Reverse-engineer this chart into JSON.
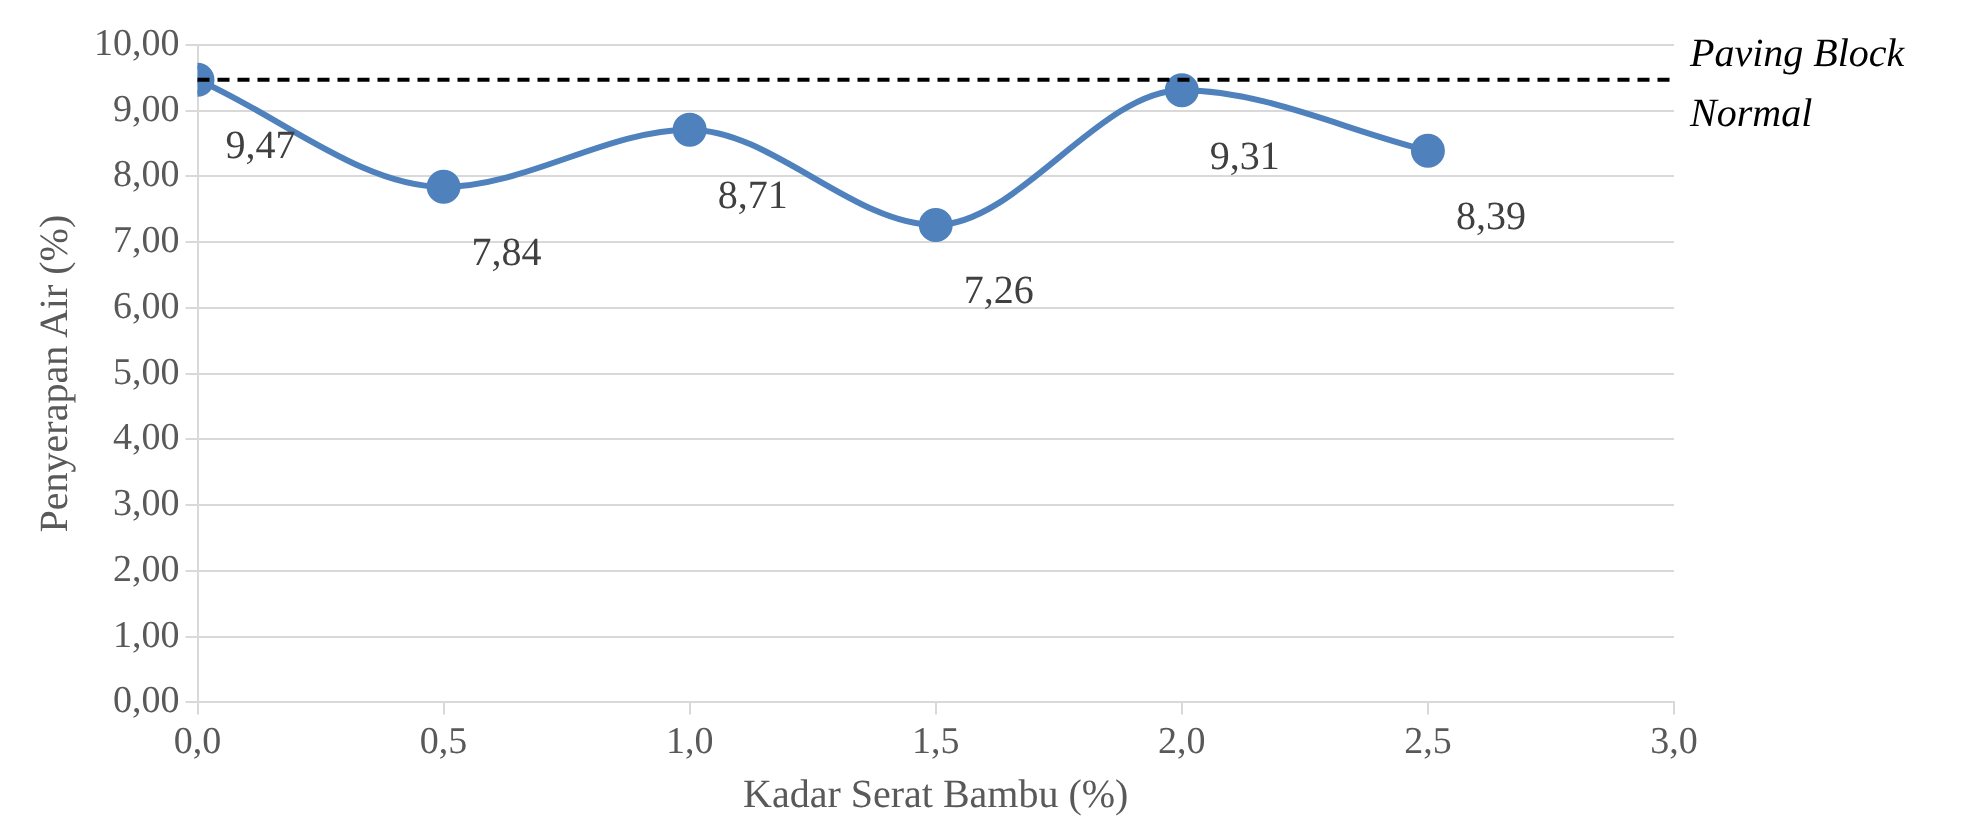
{
  "chart_data": {
    "type": "line",
    "xlabel": "Kadar Serat Bambu (%)",
    "ylabel": "Penyerapan Air (%)",
    "series": [
      {
        "color": "#4f81bd",
        "x": [
          0,
          0.5,
          1,
          1.5,
          2,
          2.5
        ],
        "values": [
          9.47,
          7.84,
          8.71,
          7.26,
          9.31,
          8.39
        ],
        "value_labels": [
          "9,47",
          "7,84",
          "8,71",
          "7,26",
          "9,31",
          "8,39"
        ]
      }
    ],
    "xlim": [
      0,
      3
    ],
    "xticks": [
      {
        "value": 0,
        "label": "0,0"
      },
      {
        "value": 0.5,
        "label": "0,5"
      },
      {
        "value": 1,
        "label": "1,0"
      },
      {
        "value": 1.5,
        "label": "1,5"
      },
      {
        "value": 2,
        "label": "2,0"
      },
      {
        "value": 2.5,
        "label": "2,5"
      },
      {
        "value": 3,
        "label": "3,0"
      }
    ],
    "ylim": [
      0,
      10
    ],
    "yticks": [
      {
        "value": 0,
        "label": "0,00"
      },
      {
        "value": 1,
        "label": "1,00"
      },
      {
        "value": 2,
        "label": "2,00"
      },
      {
        "value": 3,
        "label": "3,00"
      },
      {
        "value": 4,
        "label": "4,00"
      },
      {
        "value": 5,
        "label": "5,00"
      },
      {
        "value": 6,
        "label": "6,00"
      },
      {
        "value": 7,
        "label": "7,00"
      },
      {
        "value": 8,
        "label": "8,00"
      },
      {
        "value": 9,
        "label": "9,00"
      },
      {
        "value": 10,
        "label": "10,00"
      }
    ],
    "ref_lines": [
      {
        "axis": "y",
        "value": 9.47,
        "label": "Paving Block Normal",
        "color": "#000000",
        "line_style": "dashed"
      }
    ],
    "grid": "y",
    "legend": false,
    "marker": "circle",
    "line_style": "solid"
  }
}
